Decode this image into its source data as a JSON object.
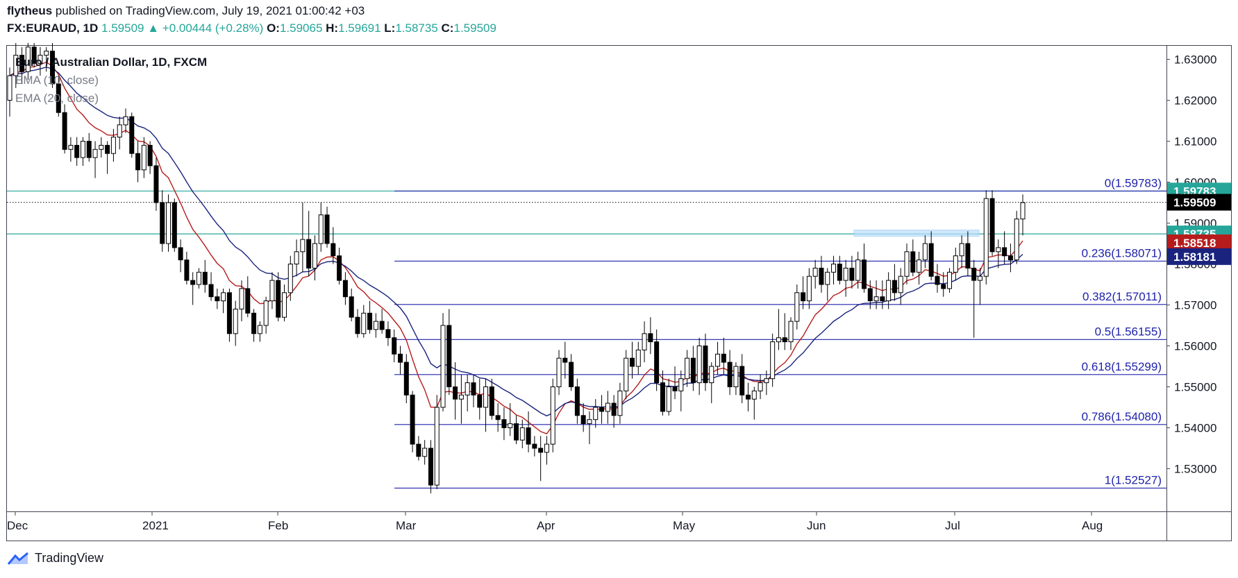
{
  "header": {
    "author": "flytheus",
    "published_text": "published on TradingView.com, July 19, 2021 01:00:42 +03",
    "symbol": "FX:EURAUD, 1D",
    "last": "1.59509",
    "change": "+0.00444 (+0.28%)",
    "open_label": "O:",
    "open": "1.59065",
    "high_label": "H:",
    "high": "1.59691",
    "low_label": "L:",
    "low": "1.58735",
    "close_label": "C:",
    "close": "1.59509"
  },
  "legend": {
    "title": "Euro / Australian Dollar, 1D, FXCM",
    "ema1": "EMA (10, close)",
    "ema2": "EMA (20, close)"
  },
  "footer": {
    "brand": "TradingView"
  },
  "colors": {
    "up_candle": "#ffffff",
    "down_candle": "#000000",
    "ema_fast": "#b71c1c",
    "ema_slow": "#1a237e",
    "fib": "#1e22aa",
    "teal": "#26a69a"
  },
  "chart_data": {
    "type": "candlestick",
    "y_axis_ticks": [
      "1.53000",
      "1.54000",
      "1.55000",
      "1.56000",
      "1.57000",
      "1.58000",
      "1.59000",
      "1.60000",
      "1.61000",
      "1.62000",
      "1.63000"
    ],
    "ylim": [
      1.5195,
      1.6335
    ],
    "x_axis_labels": [
      "Dec",
      "2021",
      "Feb",
      "Mar",
      "Apr",
      "May",
      "Jun",
      "Jul",
      "Aug"
    ],
    "price_labels": [
      {
        "text": "1.59783",
        "value": 1.59783,
        "bg": "#26a69a"
      },
      {
        "text": "1.59509",
        "value": 1.59509,
        "bg": "#000000"
      },
      {
        "text": "1.58735",
        "value": 1.58735,
        "bg": "#26a69a"
      },
      {
        "text": "1.58518",
        "value": 1.58518,
        "bg": "#b71c1c"
      },
      {
        "text": "1.58181",
        "value": 1.58181,
        "bg": "#1a237e"
      }
    ],
    "horizontal_lines": [
      1.59783,
      1.58735
    ],
    "last_price_line": 1.59509,
    "fib_levels": [
      {
        "label": "0(1.59783)",
        "value": 1.59783
      },
      {
        "label": "0.236(1.58071)",
        "value": 1.58071
      },
      {
        "label": "0.382(1.57011)",
        "value": 1.57011
      },
      {
        "label": "0.5(1.56155)",
        "value": 1.56155
      },
      {
        "label": "0.618(1.55299)",
        "value": 1.55299
      },
      {
        "label": "0.786(1.54080)",
        "value": 1.5408
      },
      {
        "label": "1(1.52527)",
        "value": 1.52527
      }
    ],
    "candles": [
      [
        1.62,
        1.628,
        1.616,
        1.626
      ],
      [
        1.626,
        1.634,
        1.623,
        1.631
      ],
      [
        1.631,
        1.633,
        1.624,
        1.627
      ],
      [
        1.627,
        1.634,
        1.625,
        1.633
      ],
      [
        1.633,
        1.634,
        1.628,
        1.629
      ],
      [
        1.629,
        1.633,
        1.626,
        1.631
      ],
      [
        1.631,
        1.633,
        1.627,
        1.632
      ],
      [
        1.632,
        1.634,
        1.623,
        1.624
      ],
      [
        1.624,
        1.626,
        1.616,
        1.617
      ],
      [
        1.617,
        1.619,
        1.607,
        1.608
      ],
      [
        1.608,
        1.611,
        1.605,
        1.609
      ],
      [
        1.609,
        1.611,
        1.604,
        1.606
      ],
      [
        1.606,
        1.611,
        1.604,
        1.61
      ],
      [
        1.61,
        1.612,
        1.605,
        1.606
      ],
      [
        1.606,
        1.61,
        1.601,
        1.608
      ],
      [
        1.608,
        1.611,
        1.606,
        1.609
      ],
      [
        1.609,
        1.61,
        1.602,
        1.607
      ],
      [
        1.607,
        1.613,
        1.605,
        1.611
      ],
      [
        1.611,
        1.616,
        1.608,
        1.614
      ],
      [
        1.614,
        1.618,
        1.612,
        1.616
      ],
      [
        1.616,
        1.617,
        1.606,
        1.607
      ],
      [
        1.607,
        1.61,
        1.6,
        1.603
      ],
      [
        1.603,
        1.611,
        1.601,
        1.609
      ],
      [
        1.609,
        1.61,
        1.602,
        1.604
      ],
      [
        1.604,
        1.606,
        1.593,
        1.595
      ],
      [
        1.595,
        1.598,
        1.583,
        1.585
      ],
      [
        1.585,
        1.597,
        1.583,
        1.595
      ],
      [
        1.595,
        1.596,
        1.583,
        1.584
      ],
      [
        1.584,
        1.586,
        1.578,
        1.581
      ],
      [
        1.581,
        1.583,
        1.575,
        1.576
      ],
      [
        1.576,
        1.578,
        1.57,
        1.575
      ],
      [
        1.575,
        1.579,
        1.574,
        1.578
      ],
      [
        1.578,
        1.581,
        1.573,
        1.575
      ],
      [
        1.575,
        1.578,
        1.571,
        1.572
      ],
      [
        1.572,
        1.574,
        1.569,
        1.571
      ],
      [
        1.571,
        1.574,
        1.568,
        1.573
      ],
      [
        1.573,
        1.574,
        1.561,
        1.563
      ],
      [
        1.563,
        1.571,
        1.56,
        1.569
      ],
      [
        1.569,
        1.576,
        1.566,
        1.574
      ],
      [
        1.574,
        1.577,
        1.567,
        1.568
      ],
      [
        1.568,
        1.569,
        1.561,
        1.563
      ],
      [
        1.563,
        1.566,
        1.561,
        1.565
      ],
      [
        1.565,
        1.572,
        1.563,
        1.571
      ],
      [
        1.571,
        1.578,
        1.569,
        1.576
      ],
      [
        1.576,
        1.578,
        1.566,
        1.567
      ],
      [
        1.567,
        1.575,
        1.566,
        1.573
      ],
      [
        1.573,
        1.582,
        1.571,
        1.58
      ],
      [
        1.58,
        1.586,
        1.577,
        1.583
      ],
      [
        1.583,
        1.595,
        1.578,
        1.586
      ],
      [
        1.586,
        1.593,
        1.577,
        1.579
      ],
      [
        1.579,
        1.587,
        1.576,
        1.585
      ],
      [
        1.585,
        1.595,
        1.583,
        1.592
      ],
      [
        1.592,
        1.594,
        1.584,
        1.585
      ],
      [
        1.585,
        1.589,
        1.58,
        1.582
      ],
      [
        1.582,
        1.584,
        1.575,
        1.576
      ],
      [
        1.576,
        1.578,
        1.57,
        1.572
      ],
      [
        1.572,
        1.574,
        1.566,
        1.567
      ],
      [
        1.567,
        1.569,
        1.562,
        1.563
      ],
      [
        1.563,
        1.57,
        1.562,
        1.568
      ],
      [
        1.568,
        1.571,
        1.563,
        1.564
      ],
      [
        1.564,
        1.568,
        1.562,
        1.566
      ],
      [
        1.566,
        1.569,
        1.563,
        1.564
      ],
      [
        1.564,
        1.566,
        1.56,
        1.562
      ],
      [
        1.562,
        1.564,
        1.556,
        1.558
      ],
      [
        1.558,
        1.56,
        1.553,
        1.556
      ],
      [
        1.556,
        1.558,
        1.546,
        1.548
      ],
      [
        1.548,
        1.549,
        1.534,
        1.536
      ],
      [
        1.536,
        1.538,
        1.532,
        1.533
      ],
      [
        1.533,
        1.537,
        1.531,
        1.535
      ],
      [
        1.535,
        1.537,
        1.524,
        1.526
      ],
      [
        1.526,
        1.548,
        1.525,
        1.545
      ],
      [
        1.545,
        1.568,
        1.544,
        1.565
      ],
      [
        1.565,
        1.569,
        1.548,
        1.55
      ],
      [
        1.55,
        1.556,
        1.542,
        1.547
      ],
      [
        1.547,
        1.553,
        1.541,
        1.548
      ],
      [
        1.548,
        1.553,
        1.544,
        1.551
      ],
      [
        1.551,
        1.553,
        1.545,
        1.548
      ],
      [
        1.548,
        1.552,
        1.542,
        1.545
      ],
      [
        1.545,
        1.552,
        1.539,
        1.55
      ],
      [
        1.55,
        1.552,
        1.542,
        1.543
      ],
      [
        1.543,
        1.546,
        1.539,
        1.542
      ],
      [
        1.542,
        1.545,
        1.537,
        1.54
      ],
      [
        1.54,
        1.546,
        1.538,
        1.541
      ],
      [
        1.541,
        1.543,
        1.536,
        1.537
      ],
      [
        1.537,
        1.542,
        1.535,
        1.54
      ],
      [
        1.54,
        1.544,
        1.534,
        1.536
      ],
      [
        1.536,
        1.538,
        1.533,
        1.535
      ],
      [
        1.535,
        1.538,
        1.527,
        1.534
      ],
      [
        1.534,
        1.538,
        1.531,
        1.536
      ],
      [
        1.536,
        1.552,
        1.534,
        1.55
      ],
      [
        1.55,
        1.559,
        1.548,
        1.557
      ],
      [
        1.557,
        1.561,
        1.552,
        1.556
      ],
      [
        1.556,
        1.558,
        1.549,
        1.55
      ],
      [
        1.55,
        1.552,
        1.541,
        1.543
      ],
      [
        1.543,
        1.546,
        1.539,
        1.541
      ],
      [
        1.541,
        1.544,
        1.536,
        1.542
      ],
      [
        1.542,
        1.547,
        1.54,
        1.545
      ],
      [
        1.545,
        1.548,
        1.541,
        1.544
      ],
      [
        1.544,
        1.549,
        1.541,
        1.546
      ],
      [
        1.546,
        1.548,
        1.54,
        1.543
      ],
      [
        1.543,
        1.551,
        1.541,
        1.549
      ],
      [
        1.549,
        1.559,
        1.547,
        1.557
      ],
      [
        1.557,
        1.561,
        1.552,
        1.555
      ],
      [
        1.555,
        1.561,
        1.553,
        1.559
      ],
      [
        1.559,
        1.566,
        1.556,
        1.563
      ],
      [
        1.563,
        1.567,
        1.558,
        1.561
      ],
      [
        1.561,
        1.564,
        1.549,
        1.551
      ],
      [
        1.551,
        1.554,
        1.543,
        1.544
      ],
      [
        1.544,
        1.552,
        1.543,
        1.55
      ],
      [
        1.55,
        1.555,
        1.547,
        1.549
      ],
      [
        1.549,
        1.554,
        1.544,
        1.552
      ],
      [
        1.552,
        1.559,
        1.55,
        1.557
      ],
      [
        1.557,
        1.56,
        1.549,
        1.551
      ],
      [
        1.551,
        1.562,
        1.548,
        1.56
      ],
      [
        1.56,
        1.563,
        1.549,
        1.551
      ],
      [
        1.551,
        1.556,
        1.546,
        1.555
      ],
      [
        1.555,
        1.561,
        1.553,
        1.558
      ],
      [
        1.558,
        1.562,
        1.553,
        1.556
      ],
      [
        1.556,
        1.559,
        1.548,
        1.55
      ],
      [
        1.55,
        1.556,
        1.548,
        1.555
      ],
      [
        1.555,
        1.558,
        1.546,
        1.548
      ],
      [
        1.548,
        1.551,
        1.544,
        1.547
      ],
      [
        1.547,
        1.55,
        1.542,
        1.549
      ],
      [
        1.549,
        1.553,
        1.547,
        1.551
      ],
      [
        1.551,
        1.554,
        1.548,
        1.552
      ],
      [
        1.552,
        1.563,
        1.55,
        1.561
      ],
      [
        1.561,
        1.569,
        1.559,
        1.562
      ],
      [
        1.562,
        1.568,
        1.559,
        1.561
      ],
      [
        1.561,
        1.567,
        1.559,
        1.566
      ],
      [
        1.566,
        1.575,
        1.564,
        1.573
      ],
      [
        1.573,
        1.577,
        1.569,
        1.571
      ],
      [
        1.571,
        1.579,
        1.569,
        1.577
      ],
      [
        1.577,
        1.581,
        1.574,
        1.579
      ],
      [
        1.579,
        1.582,
        1.573,
        1.575
      ],
      [
        1.575,
        1.579,
        1.571,
        1.578
      ],
      [
        1.578,
        1.582,
        1.575,
        1.58
      ],
      [
        1.58,
        1.582,
        1.575,
        1.576
      ],
      [
        1.576,
        1.581,
        1.572,
        1.579
      ],
      [
        1.579,
        1.582,
        1.574,
        1.576
      ],
      [
        1.576,
        1.583,
        1.574,
        1.581
      ],
      [
        1.581,
        1.585,
        1.573,
        1.574
      ],
      [
        1.574,
        1.576,
        1.569,
        1.571
      ],
      [
        1.571,
        1.576,
        1.569,
        1.572
      ],
      [
        1.572,
        1.576,
        1.569,
        1.571
      ],
      [
        1.571,
        1.578,
        1.569,
        1.576
      ],
      [
        1.576,
        1.58,
        1.571,
        1.573
      ],
      [
        1.573,
        1.579,
        1.57,
        1.577
      ],
      [
        1.577,
        1.585,
        1.575,
        1.583
      ],
      [
        1.583,
        1.586,
        1.577,
        1.578
      ],
      [
        1.578,
        1.583,
        1.575,
        1.581
      ],
      [
        1.581,
        1.587,
        1.579,
        1.585
      ],
      [
        1.585,
        1.588,
        1.576,
        1.577
      ],
      [
        1.577,
        1.58,
        1.573,
        1.575
      ],
      [
        1.575,
        1.578,
        1.572,
        1.574
      ],
      [
        1.574,
        1.579,
        1.573,
        1.578
      ],
      [
        1.578,
        1.584,
        1.576,
        1.582
      ],
      [
        1.582,
        1.587,
        1.579,
        1.585
      ],
      [
        1.585,
        1.588,
        1.577,
        1.579
      ],
      [
        1.579,
        1.581,
        1.562,
        1.576
      ],
      [
        1.576,
        1.579,
        1.57,
        1.577
      ],
      [
        1.577,
        1.598,
        1.575,
        1.596
      ],
      [
        1.596,
        1.598,
        1.582,
        1.583
      ],
      [
        1.583,
        1.586,
        1.579,
        1.584
      ],
      [
        1.584,
        1.588,
        1.58,
        1.582
      ],
      [
        1.582,
        1.585,
        1.578,
        1.581
      ],
      [
        1.581,
        1.593,
        1.58,
        1.591
      ],
      [
        1.591,
        1.597,
        1.587,
        1.595
      ]
    ]
  }
}
